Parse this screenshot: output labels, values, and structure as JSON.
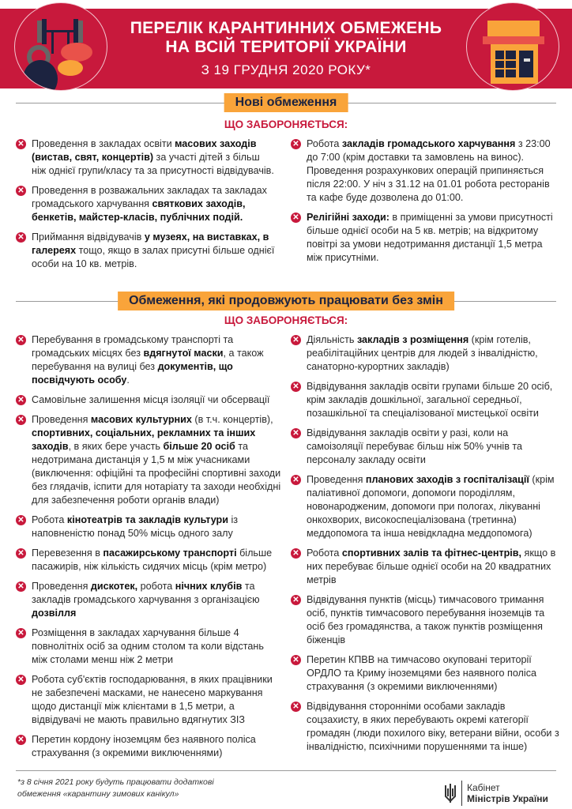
{
  "header": {
    "title_line1": "ПЕРЕЛІК КАРАНТИННИХ ОБМЕЖЕНЬ",
    "title_line2": "НА ВСІЙ ТЕРИТОРІЇ УКРАЇНИ",
    "date": "З 19 ГРУДНЯ 2020 РОКУ*",
    "left_icon": "gym-equipment-icon",
    "right_icon": "shop-storefront-icon"
  },
  "colors": {
    "brand_red": "#c8193c",
    "accent_orange": "#f9a43a",
    "navy": "#1c2340"
  },
  "sections": [
    {
      "title": "Нові обмеження",
      "subtitle": "ЩО ЗАБОРОНЯЄТЬСЯ:",
      "left": [
        [
          {
            "t": "Проведення в закладах освіти "
          },
          {
            "t": "масових заходів (вистав, свят, концертів)",
            "b": true
          },
          {
            "t": " за участі дітей з більш ніж однієї групи/класу та за присутності відвідувачів."
          }
        ],
        [
          {
            "t": "Проведення в розважальних закладах та закладах громадського харчування "
          },
          {
            "t": "святкових заходів, бенкетів, майстер-класів, публічних подій.",
            "b": true
          }
        ],
        [
          {
            "t": "Приймання відвідувачів "
          },
          {
            "t": "у музеях, на виставках, в галереях",
            "b": true
          },
          {
            "t": " тощо, якщо в залах присутні більше однієї особи на 10 кв. метрів."
          }
        ]
      ],
      "right": [
        [
          {
            "t": "Робота "
          },
          {
            "t": "закладів громадського харчування",
            "b": true
          },
          {
            "t": " з 23:00 до 7:00 (крім доставки та замовлень на винос). Проведення розрахункових операцій припиняється після 22:00. У ніч з 31.12 на 01.01 робота ресторанів та кафе буде дозволена до 01:00."
          }
        ],
        [
          {
            "t": "Релігійні заходи:",
            "b": true
          },
          {
            "t": " в приміщенні за умови присутності більше однієї особи на 5 кв. метрів; на відкритому повітрі за умови недотримання дистанції 1,5 метра між присутніми."
          }
        ]
      ]
    },
    {
      "title": "Обмеження, які продовжують працювати без змін",
      "subtitle": "ЩО ЗАБОРОНЯЄТЬСЯ:",
      "left": [
        [
          {
            "t": "Перебування в громадському транспорті та громадських місцях без "
          },
          {
            "t": "вдягнутої маски",
            "b": true
          },
          {
            "t": ", а також перебування на вулиці без "
          },
          {
            "t": "документів, що посвідчують особу",
            "b": true
          },
          {
            "t": "."
          }
        ],
        [
          {
            "t": "Самовільне залишення місця ізоляції чи обсервації"
          }
        ],
        [
          {
            "t": "Проведення "
          },
          {
            "t": "масових культурних",
            "b": true
          },
          {
            "t": " (в т.ч. концертів), "
          },
          {
            "t": "спортивних, соціальних, рекламних та інших заходів",
            "b": true
          },
          {
            "t": ", в яких бере участь "
          },
          {
            "t": "більше 20 осіб",
            "b": true
          },
          {
            "t": " та недотримана дистанція у 1,5 м між учасниками (виключення: офіційні та професійні спортивні заходи без глядачів, іспити для нотаріату та заходи необхідні для забезпечення роботи органів влади)"
          }
        ],
        [
          {
            "t": "Робота "
          },
          {
            "t": "кінотеатрів та закладів культури",
            "b": true
          },
          {
            "t": " із наповненістю понад 50% місць одного залу"
          }
        ],
        [
          {
            "t": "Перевезення в "
          },
          {
            "t": "пасажирському транспорті",
            "b": true
          },
          {
            "t": " більше пасажирів, ніж кількість сидячих місць (крім метро)"
          }
        ],
        [
          {
            "t": "Проведення "
          },
          {
            "t": "дискотек,",
            "b": true
          },
          {
            "t": " робота "
          },
          {
            "t": "нічних клубів",
            "b": true
          },
          {
            "t": " та закладів громадського харчування з організацією "
          },
          {
            "t": "дозвілля",
            "b": true
          }
        ],
        [
          {
            "t": "Розміщення в закладах харчування більше 4 повнолітніх осіб за одним столом та коли відстань між столами менш ніж 2 метри"
          }
        ],
        [
          {
            "t": "Робота суб'єктів господарювання, в яких працівники не забезпечені масками, не нанесено маркування щодо дистанції між клієнтами в 1,5 метри, а відвідувачі не мають правильно вдягнутих ЗІЗ"
          }
        ],
        [
          {
            "t": "Перетин кордону іноземцям без наявного поліса страхування (з окремими виключеннями)"
          }
        ]
      ],
      "right": [
        [
          {
            "t": "Діяльність "
          },
          {
            "t": "закладів з розміщення",
            "b": true
          },
          {
            "t": " (крім готелів, реабілітаційних центрів для людей з інвалідністю, санаторно-курортних закладів)"
          }
        ],
        [
          {
            "t": "Відвідування закладів освіти групами більше 20 осіб, крім закладів дошкільної, загальної середньої, позашкільної та спеціалізованої мистецької освіти"
          }
        ],
        [
          {
            "t": "Відвідування закладів освіти у разі, коли на самоізоляції перебуває більш ніж 50% учнів та персоналу закладу освіти"
          }
        ],
        [
          {
            "t": "Проведення "
          },
          {
            "t": "планових заходів з госпіталізації",
            "b": true
          },
          {
            "t": " (крім паліативної допомоги, допомоги породіллям, новонародженим, допомоги при пологах, лікуванні онкохворих, високоспеціалізована (третинна) меддопомога та інша невідкладна меддопомога)"
          }
        ],
        [
          {
            "t": "Робота "
          },
          {
            "t": "спортивних залів та фітнес-центрів,",
            "b": true
          },
          {
            "t": " якщо в них перебуває більше однієї особи на 20 квадратних метрів"
          }
        ],
        [
          {
            "t": "Відвідування пунктів (місць) тимчасового тримання осіб, пунктів тимчасового перебування іноземців та осіб без громадянства, а також пунктів розміщення біженців"
          }
        ],
        [
          {
            "t": "Перетин КПВВ на тимчасово окуповані території ОРДЛО та Криму іноземцями без наявного поліса страхування (з окремими виключеннями)"
          }
        ],
        [
          {
            "t": "Відвідування сторонніми особами закладів соцзахисту, в яких перебувають окремі категорії громадян (люди похилого віку, ветерани війни, особи з інвалідністю, психічними порушеннями та інше)"
          }
        ]
      ]
    }
  ],
  "footer": {
    "footnote_line1": "*з 8 січня 2021 року будуть працювати додаткові",
    "footnote_line2": "обмеження «карантину зимових канікул»",
    "logo_line1": "Кабінет",
    "logo_line2": "Міністрів України",
    "logo_icon": "trident-icon"
  }
}
